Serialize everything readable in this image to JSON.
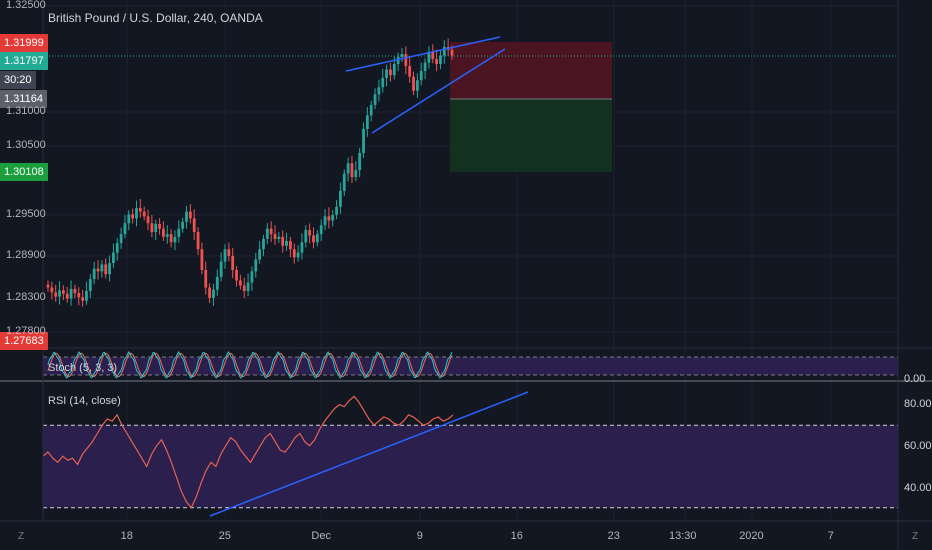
{
  "header": {
    "title": "British Pound / U.S. Dollar, 240, OANDA"
  },
  "price_tags": {
    "stop": "1.31999",
    "last": "1.31797",
    "countdown": "30:20",
    "entry": "1.31164",
    "target": "1.30108",
    "low": "1.27683"
  },
  "indicators": {
    "stoch_label": "Stoch (5, 3, 3)",
    "stoch_axis_label": "0.00",
    "rsi_label": "RSI (14, close)",
    "rsi_axis_labels": [
      "80.00",
      "60.00",
      "40.00"
    ]
  },
  "price_axis_labels": [
    "1.32500",
    "1.31000",
    "1.30500",
    "1.29500",
    "1.28900",
    "1.28300",
    "1.27800"
  ],
  "time_axis_labels": [
    "18",
    "25",
    "Dec",
    "9",
    "16",
    "23",
    "13:30",
    "2020",
    "7"
  ],
  "corner_icons": {
    "left": "Z",
    "right": "Z"
  },
  "colors": {
    "background": "#131722",
    "up": "#26a69a",
    "down": "#ef5350",
    "trendline": "#2962ff",
    "stop_zone": "#4a1420",
    "target_zone": "#12311f",
    "rsi_line": "#e8624f",
    "rsi_band": "#2a1f4d"
  },
  "chart_data": [
    {
      "type": "candlestick",
      "title": "British Pound / U.S. Dollar, 240, OANDA",
      "x_ticks": [
        "18",
        "25",
        "Dec",
        "9",
        "16",
        "23",
        "13:30",
        "2020",
        "7"
      ],
      "ylim": [
        1.277,
        1.3255
      ],
      "y_ticks": [
        1.325,
        1.31,
        1.305,
        1.295,
        1.289,
        1.283,
        1.278
      ],
      "close_series": [
        1.2845,
        1.2838,
        1.2832,
        1.2841,
        1.2836,
        1.2829,
        1.2843,
        1.2837,
        1.2831,
        1.2826,
        1.284,
        1.2857,
        1.2872,
        1.2868,
        1.2878,
        1.2864,
        1.288,
        1.2895,
        1.2909,
        1.2922,
        1.2938,
        1.2951,
        1.2945,
        1.296,
        1.2955,
        1.2948,
        1.2938,
        1.2925,
        1.2937,
        1.293,
        1.2918,
        1.2922,
        1.291,
        1.2918,
        1.293,
        1.294,
        1.2955,
        1.2945,
        1.2925,
        1.29,
        1.287,
        1.2845,
        1.283,
        1.2842,
        1.286,
        1.2882,
        1.29,
        1.289,
        1.287,
        1.2855,
        1.2848,
        1.284,
        1.2852,
        1.2868,
        1.2885,
        1.29,
        1.2915,
        1.293,
        1.2922,
        1.2915,
        1.2918,
        1.2905,
        1.2912,
        1.29,
        1.2888,
        1.2895,
        1.291,
        1.2928,
        1.292,
        1.291,
        1.2922,
        1.2935,
        1.2948,
        1.2942,
        1.295,
        1.2962,
        1.2985,
        1.301,
        1.3025,
        1.3005,
        1.3015,
        1.304,
        1.3075,
        1.3095,
        1.311,
        1.3125,
        1.3135,
        1.3148,
        1.316,
        1.3152,
        1.3168,
        1.3178,
        1.3182,
        1.3165,
        1.315,
        1.313,
        1.3145,
        1.3158,
        1.317,
        1.3185,
        1.3175,
        1.3168,
        1.318,
        1.3192,
        1.3188,
        1.318
      ]
    },
    {
      "type": "line",
      "title": "Stoch (5, 3, 3)",
      "ylim": [
        0,
        100
      ]
    },
    {
      "type": "line",
      "title": "RSI (14, close)",
      "ylim": [
        25,
        90
      ],
      "y_ticks": [
        80,
        60,
        40
      ],
      "bands": [
        70,
        30
      ],
      "values": [
        55,
        57,
        54,
        52,
        55,
        53,
        54,
        51,
        56,
        59,
        62,
        66,
        70,
        73,
        72,
        75,
        70,
        66,
        62,
        58,
        54,
        50,
        56,
        60,
        63,
        58,
        52,
        45,
        38,
        33,
        30,
        35,
        42,
        48,
        52,
        50,
        56,
        60,
        64,
        62,
        58,
        55,
        52,
        56,
        60,
        64,
        66,
        62,
        58,
        57,
        60,
        64,
        66,
        62,
        60,
        63,
        68,
        72,
        75,
        78,
        80,
        79,
        82,
        84,
        81,
        77,
        73,
        70,
        72,
        74,
        73,
        71,
        70,
        72,
        75,
        74,
        72,
        70,
        71,
        73,
        74,
        72,
        73,
        75
      ]
    }
  ]
}
